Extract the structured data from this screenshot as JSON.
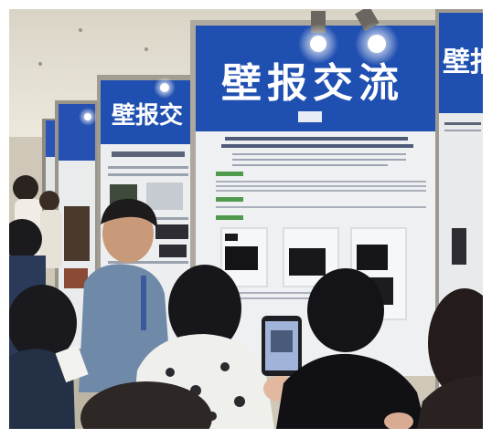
{
  "scene": {
    "main_board_heading": "壁报交流",
    "second_board_heading": "壁报交",
    "right_board_heading": "壁报",
    "colors": {
      "board_blue": "#1f4fb0",
      "poster_paper": "#eef0f2",
      "ceiling": "#e6e2d6",
      "floor": "#c9c2b2"
    }
  }
}
